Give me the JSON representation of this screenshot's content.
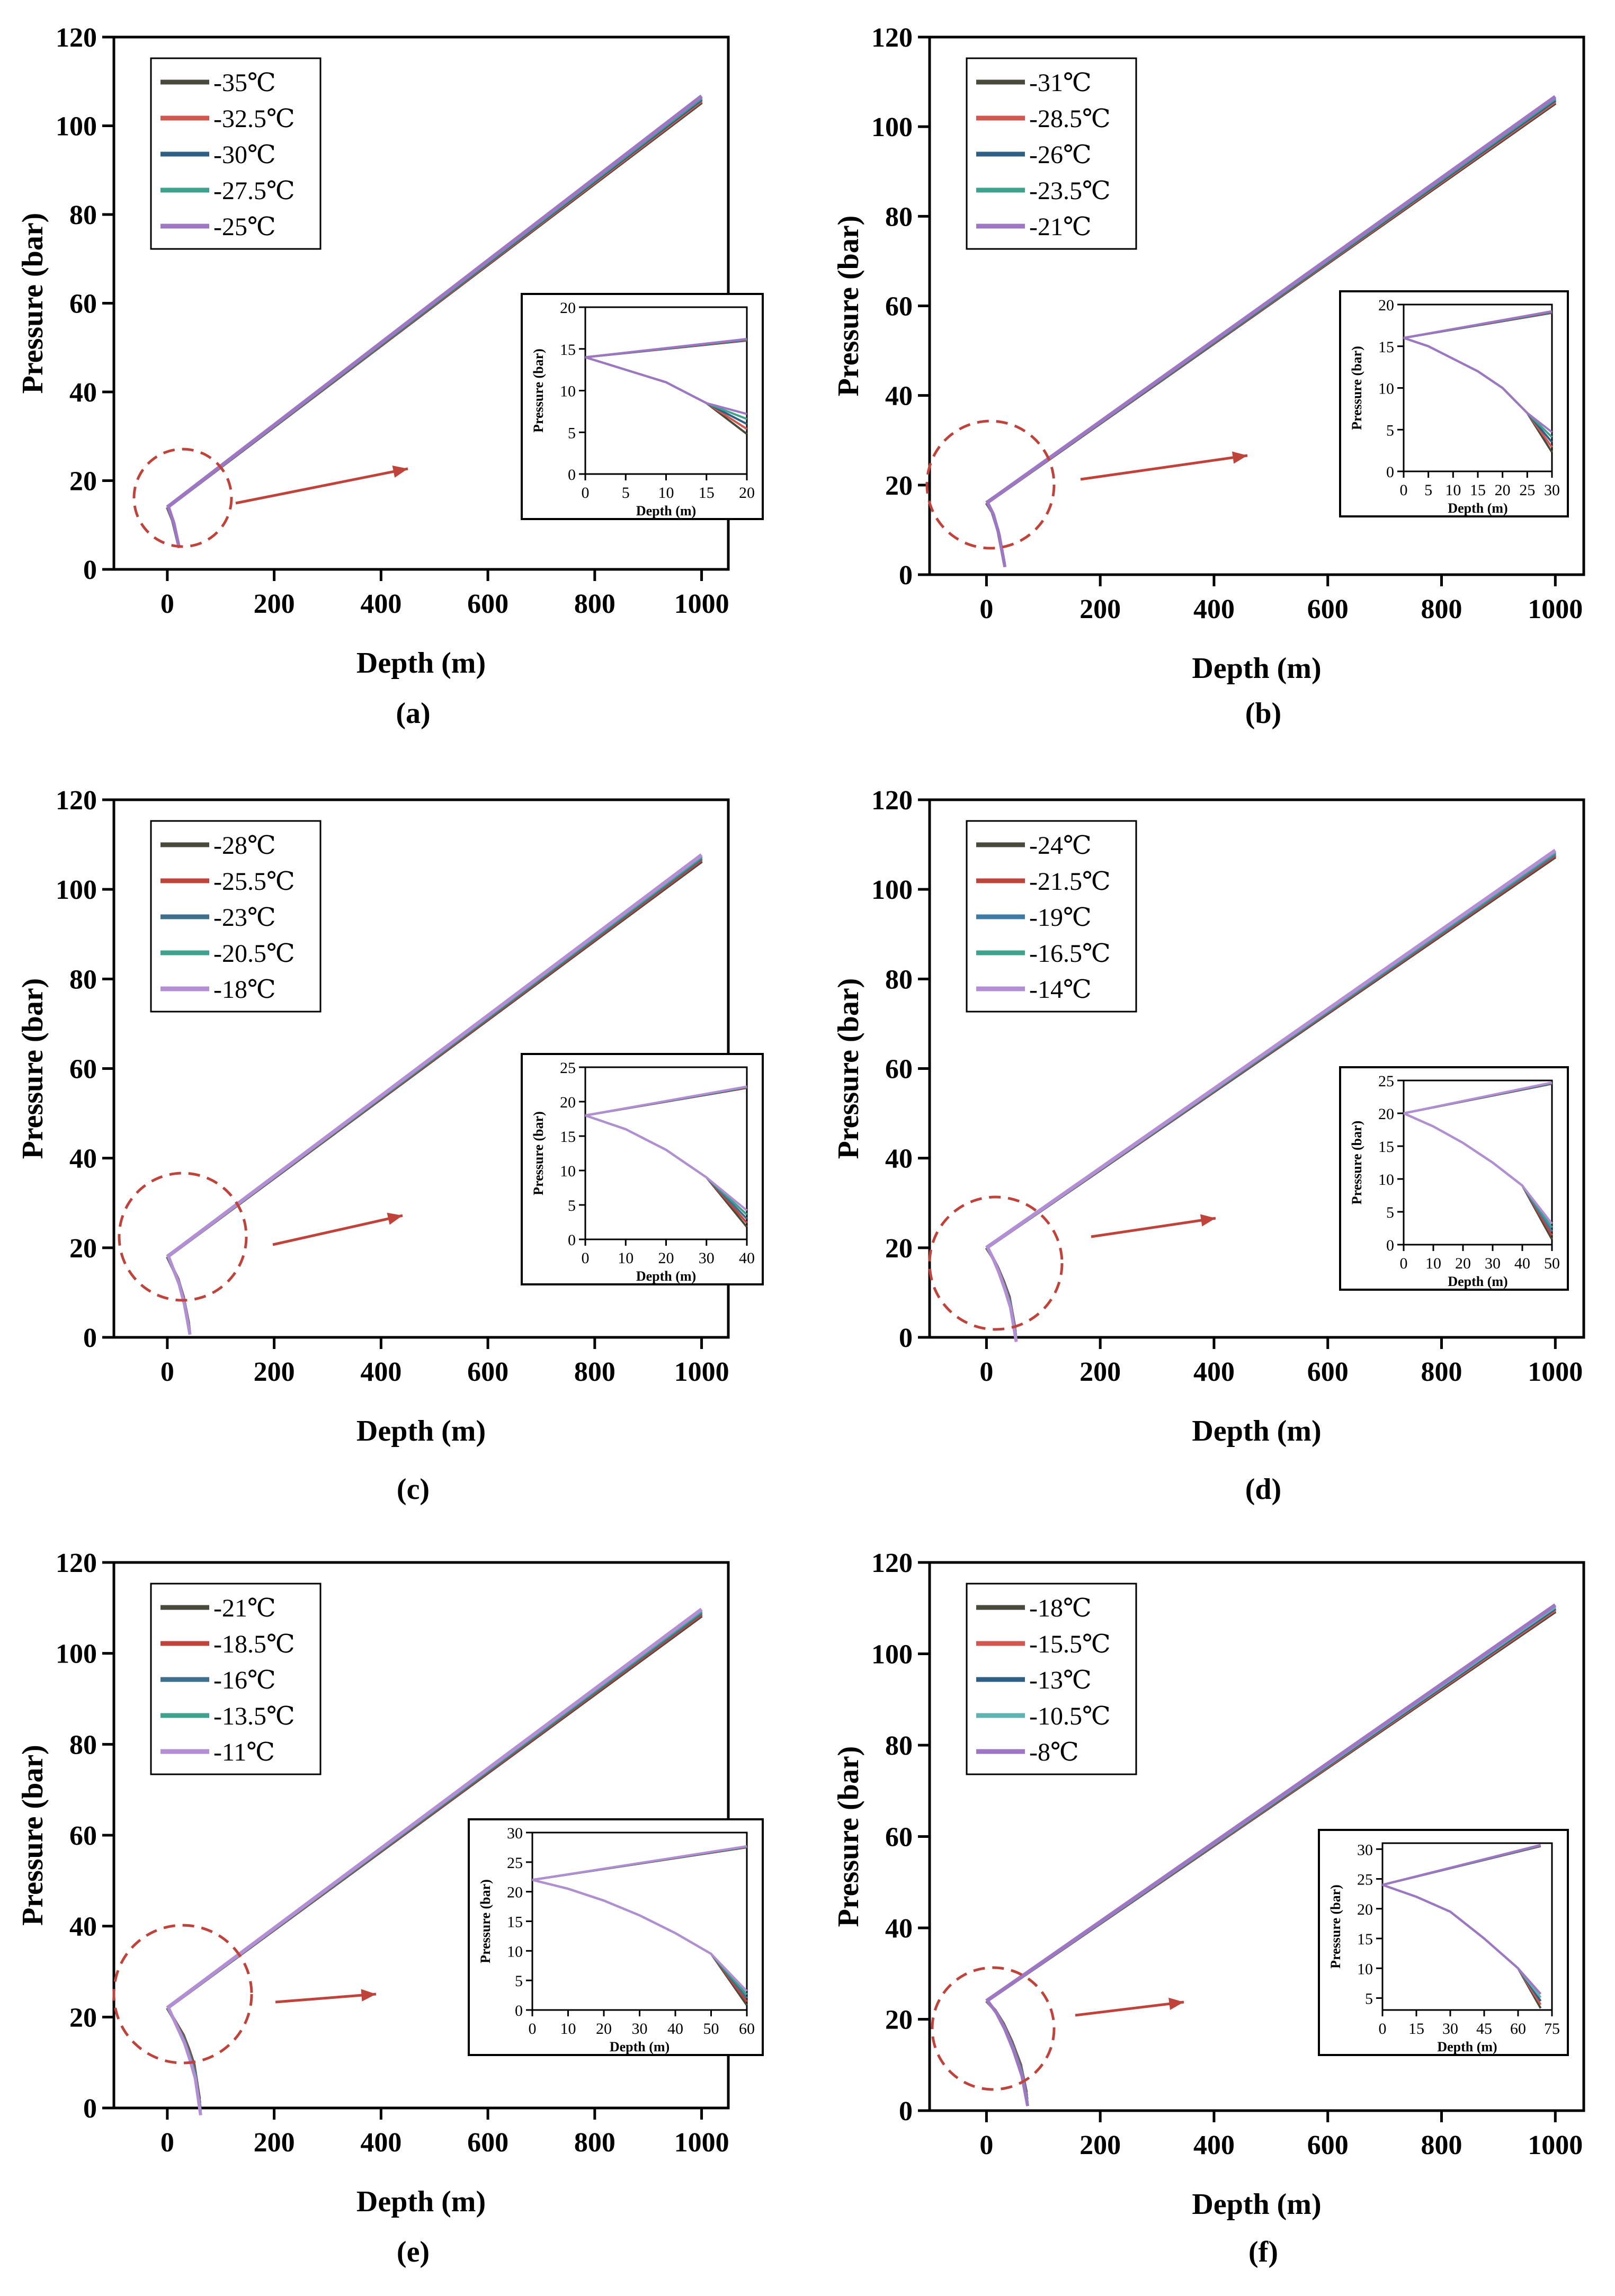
{
  "panels": [
    {
      "label": "(a)",
      "chart_data": {
        "type": "line",
        "xlabel": "Depth (m)",
        "ylabel": "Pressure (bar)",
        "xlim": [
          -100,
          1050
        ],
        "ylim": [
          0,
          120
        ],
        "xticks": [
          "0",
          "200",
          "400",
          "600",
          "800",
          "1000"
        ],
        "yticks": [
          "0",
          "20",
          "40",
          "60",
          "80",
          "100",
          "120"
        ],
        "legend_position": "top-left",
        "series": [
          {
            "name": "-35℃",
            "color": "#4a4a3c"
          },
          {
            "name": "-32.5℃",
            "color": "#d2584f"
          },
          {
            "name": "-30℃",
            "color": "#2e5f86"
          },
          {
            "name": "-27.5℃",
            "color": "#3ea28c"
          },
          {
            "name": "-25℃",
            "color": "#9f76c4"
          }
        ],
        "main_curve": {
          "depth": [
            0,
            1000
          ],
          "pressure": [
            14,
            106
          ]
        },
        "branch_curve": {
          "depth": [
            0,
            10,
            20
          ],
          "pressure": [
            14,
            11,
            6
          ]
        },
        "inset": {
          "xlabel": "Depth (m)",
          "ylabel": "Pressure (bar)",
          "xlim": [
            0,
            20
          ],
          "ylim": [
            0,
            20
          ],
          "xticks": [
            "0",
            "5",
            "10",
            "15",
            "20"
          ],
          "yticks": [
            "0",
            "5",
            "10",
            "15",
            "20"
          ],
          "upper": {
            "depth": [
              0,
              20
            ],
            "pressure": [
              14,
              16
            ]
          },
          "lower": {
            "depth": [
              0,
              5,
              10,
              15,
              20
            ],
            "pressure": [
              14,
              12.5,
              11,
              8.5,
              6
            ]
          }
        }
      }
    },
    {
      "label": "(b)",
      "chart_data": {
        "type": "line",
        "xlabel": "Depth (m)",
        "ylabel": "Pressure (bar)",
        "xlim": [
          -100,
          1050
        ],
        "ylim": [
          0,
          120
        ],
        "xticks": [
          "0",
          "200",
          "400",
          "600",
          "800",
          "1000"
        ],
        "yticks": [
          "0",
          "20",
          "40",
          "60",
          "80",
          "100",
          "120"
        ],
        "legend_position": "top-left",
        "series": [
          {
            "name": "-31℃",
            "color": "#4a4a3c"
          },
          {
            "name": "-28.5℃",
            "color": "#d2584f"
          },
          {
            "name": "-26℃",
            "color": "#2e5f86"
          },
          {
            "name": "-23.5℃",
            "color": "#3ea28c"
          },
          {
            "name": "-21℃",
            "color": "#9f76c4"
          }
        ],
        "main_curve": {
          "depth": [
            0,
            1000
          ],
          "pressure": [
            16,
            106
          ]
        },
        "branch_curve": {
          "depth": [
            0,
            10,
            20,
            30
          ],
          "pressure": [
            16,
            14,
            10,
            3.5
          ]
        },
        "inset": {
          "xlabel": "Depth (m)",
          "ylabel": "Pressure (bar)",
          "xlim": [
            0,
            30
          ],
          "ylim": [
            0,
            20
          ],
          "xticks": [
            "0",
            "5",
            "10",
            "15",
            "20",
            "25",
            "30"
          ],
          "yticks": [
            "0",
            "5",
            "10",
            "15",
            "20"
          ],
          "upper": {
            "depth": [
              0,
              30
            ],
            "pressure": [
              16,
              19
            ]
          },
          "lower": {
            "depth": [
              0,
              5,
              10,
              15,
              20,
              25,
              30
            ],
            "pressure": [
              16,
              15,
              13.5,
              12,
              10,
              7,
              3.5
            ]
          }
        }
      }
    },
    {
      "label": "(c)",
      "chart_data": {
        "type": "line",
        "xlabel": "Depth (m)",
        "ylabel": "Pressure (bar)",
        "xlim": [
          -100,
          1050
        ],
        "ylim": [
          0,
          120
        ],
        "xticks": [
          "0",
          "200",
          "400",
          "600",
          "800",
          "1000"
        ],
        "yticks": [
          "0",
          "20",
          "40",
          "60",
          "80",
          "100",
          "120"
        ],
        "legend_position": "top-left",
        "series": [
          {
            "name": "-28℃",
            "color": "#4a4a3c"
          },
          {
            "name": "-25.5℃",
            "color": "#c0433b"
          },
          {
            "name": "-23℃",
            "color": "#3d6f8e"
          },
          {
            "name": "-20.5℃",
            "color": "#3ea28c"
          },
          {
            "name": "-18℃",
            "color": "#b48ed4"
          }
        ],
        "main_curve": {
          "depth": [
            0,
            1000
          ],
          "pressure": [
            18,
            107
          ]
        },
        "branch_curve": {
          "depth": [
            0,
            10,
            20,
            30,
            40
          ],
          "pressure": [
            18,
            15.5,
            13,
            9,
            3
          ]
        },
        "inset": {
          "xlabel": "Depth (m)",
          "ylabel": "Pressure (bar)",
          "xlim": [
            0,
            40
          ],
          "ylim": [
            0,
            25
          ],
          "xticks": [
            "0",
            "10",
            "20",
            "30",
            "40"
          ],
          "yticks": [
            "0",
            "5",
            "10",
            "15",
            "20",
            "25"
          ],
          "upper": {
            "depth": [
              0,
              40
            ],
            "pressure": [
              18,
              22
            ]
          },
          "lower": {
            "depth": [
              0,
              10,
              20,
              30,
              40
            ],
            "pressure": [
              18,
              16,
              13,
              9,
              3
            ]
          }
        }
      }
    },
    {
      "label": "(d)",
      "chart_data": {
        "type": "line",
        "xlabel": "Depth (m)",
        "ylabel": "Pressure (bar)",
        "xlim": [
          -100,
          1050
        ],
        "ylim": [
          0,
          120
        ],
        "xticks": [
          "0",
          "200",
          "400",
          "600",
          "800",
          "1000"
        ],
        "yticks": [
          "0",
          "20",
          "40",
          "60",
          "80",
          "100",
          "120"
        ],
        "legend_position": "top-left",
        "series": [
          {
            "name": "-24℃",
            "color": "#4a4a3c"
          },
          {
            "name": "-21.5℃",
            "color": "#c0433b"
          },
          {
            "name": "-19℃",
            "color": "#3d7aa6"
          },
          {
            "name": "-16.5℃",
            "color": "#3ea28c"
          },
          {
            "name": "-14℃",
            "color": "#b48ed4"
          }
        ],
        "main_curve": {
          "depth": [
            0,
            1000
          ],
          "pressure": [
            20,
            108
          ]
        },
        "branch_curve": {
          "depth": [
            0,
            10,
            20,
            30,
            40,
            50
          ],
          "pressure": [
            20,
            18,
            15.5,
            12.5,
            9,
            2
          ]
        },
        "inset": {
          "xlabel": "Depth (m)",
          "ylabel": "Pressure (bar)",
          "xlim": [
            0,
            50
          ],
          "ylim": [
            0,
            25
          ],
          "xticks": [
            "0",
            "10",
            "20",
            "30",
            "40",
            "50"
          ],
          "yticks": [
            "0",
            "5",
            "10",
            "15",
            "20",
            "25"
          ],
          "upper": {
            "depth": [
              0,
              50
            ],
            "pressure": [
              20,
              24.5
            ]
          },
          "lower": {
            "depth": [
              0,
              10,
              20,
              30,
              40,
              50
            ],
            "pressure": [
              20,
              18,
              15.5,
              12.5,
              9,
              2
            ]
          }
        }
      }
    },
    {
      "label": "(e)",
      "chart_data": {
        "type": "line",
        "xlabel": "Depth (m)",
        "ylabel": "Pressure (bar)",
        "xlim": [
          -100,
          1050
        ],
        "ylim": [
          0,
          120
        ],
        "xticks": [
          "0",
          "200",
          "400",
          "600",
          "800",
          "1000"
        ],
        "yticks": [
          "0",
          "20",
          "40",
          "60",
          "80",
          "100",
          "120"
        ],
        "legend_position": "top-left",
        "series": [
          {
            "name": "-21℃",
            "color": "#4a4a3c"
          },
          {
            "name": "-18.5℃",
            "color": "#c0433b"
          },
          {
            "name": "-16℃",
            "color": "#3d6f8e"
          },
          {
            "name": "-13.5℃",
            "color": "#3ea28c"
          },
          {
            "name": "-11℃",
            "color": "#b48ed4"
          }
        ],
        "main_curve": {
          "depth": [
            0,
            1000
          ],
          "pressure": [
            22,
            109
          ]
        },
        "branch_curve": {
          "depth": [
            0,
            10,
            20,
            30,
            40,
            50,
            60
          ],
          "pressure": [
            22,
            20,
            18,
            16,
            13,
            9.5,
            2
          ]
        },
        "inset": {
          "xlabel": "Depth (m)",
          "ylabel": "Pressure (bar)",
          "xlim": [
            0,
            60
          ],
          "ylim": [
            0,
            30
          ],
          "xticks": [
            "0",
            "10",
            "20",
            "30",
            "40",
            "50",
            "60"
          ],
          "yticks": [
            "0",
            "5",
            "10",
            "15",
            "20",
            "25",
            "30"
          ],
          "upper": {
            "depth": [
              0,
              60
            ],
            "pressure": [
              22,
              27.5
            ]
          },
          "lower": {
            "depth": [
              0,
              10,
              20,
              30,
              40,
              50,
              60
            ],
            "pressure": [
              22,
              20.5,
              18.5,
              16,
              13,
              9.5,
              2
            ]
          }
        }
      }
    },
    {
      "label": "(f)",
      "chart_data": {
        "type": "line",
        "xlabel": "Depth (m)",
        "ylabel": "Pressure (bar)",
        "xlim": [
          -100,
          1050
        ],
        "ylim": [
          0,
          120
        ],
        "xticks": [
          "0",
          "200",
          "400",
          "600",
          "800",
          "1000"
        ],
        "yticks": [
          "0",
          "20",
          "40",
          "60",
          "80",
          "100",
          "120"
        ],
        "legend_position": "top-left",
        "series": [
          {
            "name": "-18℃",
            "color": "#4a4a3c"
          },
          {
            "name": "-15.5℃",
            "color": "#d2584f"
          },
          {
            "name": "-13℃",
            "color": "#2e5f86"
          },
          {
            "name": "-10.5℃",
            "color": "#5fb3b0"
          },
          {
            "name": "-8℃",
            "color": "#9f76c4"
          }
        ],
        "main_curve": {
          "depth": [
            0,
            1000
          ],
          "pressure": [
            24,
            110
          ]
        },
        "branch_curve": {
          "depth": [
            0,
            15,
            30,
            45,
            60,
            70
          ],
          "pressure": [
            24,
            22,
            19,
            15,
            10,
            4
          ]
        },
        "inset": {
          "xlabel": "Depth (m)",
          "ylabel": "Pressure (bar)",
          "xlim": [
            0,
            75
          ],
          "ylim": [
            3,
            31
          ],
          "xticks": [
            "0",
            "15",
            "30",
            "45",
            "60",
            "75"
          ],
          "yticks": [
            "5",
            "10",
            "15",
            "20",
            "25",
            "30"
          ],
          "upper": {
            "depth": [
              0,
              70
            ],
            "pressure": [
              24,
              30.5
            ]
          },
          "lower": {
            "depth": [
              0,
              15,
              30,
              45,
              60,
              70
            ],
            "pressure": [
              24,
              22,
              19.5,
              15,
              10,
              4.5
            ]
          }
        }
      }
    }
  ]
}
